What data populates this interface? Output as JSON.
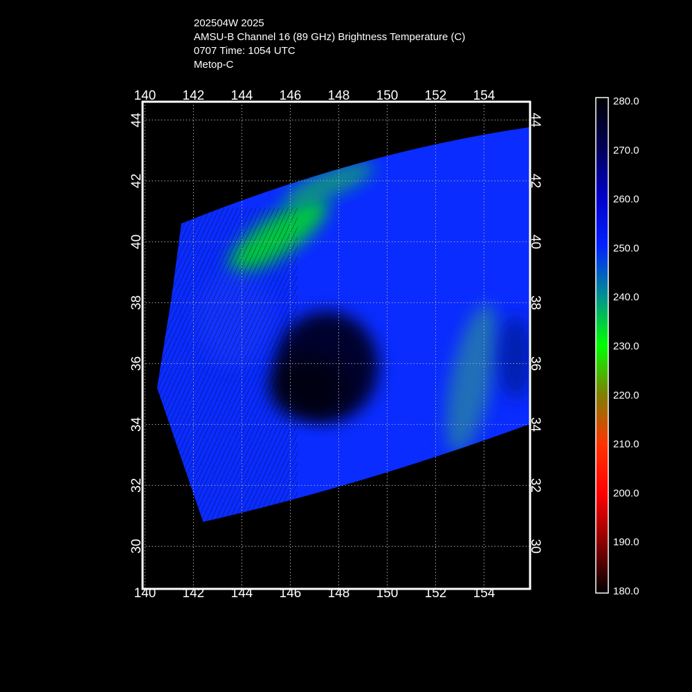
{
  "header": {
    "line1": "202504W 2025",
    "line2": "AMSU-B Channel 16 (89 GHz) Brightness Temperature (C)",
    "line3": "0707 Time: 1054 UTC",
    "line4": "Metop-C"
  },
  "chart_data": {
    "type": "heatmap",
    "title": "AMSU-B Channel 16 (89 GHz) Brightness Temperature (C)",
    "xlabel": "",
    "ylabel": "",
    "x_ticks": [
      "140",
      "142",
      "144",
      "146",
      "148",
      "150",
      "152",
      "154"
    ],
    "y_ticks": [
      "30",
      "32",
      "34",
      "36",
      "38",
      "40",
      "42",
      "44"
    ],
    "xlim": [
      139.9,
      155.9
    ],
    "ylim": [
      28.6,
      44.6
    ],
    "grid": true,
    "swath_corners_lonlat": [
      [
        141.5,
        40.6
      ],
      [
        156.2,
        43.8
      ],
      [
        156.2,
        34.1
      ],
      [
        142.4,
        30.8
      ],
      [
        140.5,
        35.2
      ],
      [
        141.1,
        38.2
      ]
    ],
    "features": [
      {
        "name": "eye_cold_core",
        "lon": 147.5,
        "lat": 35.9,
        "value_c": 270
      },
      {
        "name": "cold_rainband_north",
        "lon": 145.5,
        "lat": 40.2,
        "value_c": 232
      },
      {
        "name": "cold_rainband_ne",
        "lon": 147.6,
        "lat": 41.9,
        "value_c": 238
      },
      {
        "name": "cold_rainband_east",
        "lon": 153.5,
        "lat": 35.5,
        "value_c": 243
      }
    ],
    "colorbar": {
      "ticks": [
        "280.0",
        "270.0",
        "260.0",
        "250.0",
        "240.0",
        "230.0",
        "220.0",
        "210.0",
        "200.0",
        "190.0",
        "180.0"
      ],
      "range": [
        180,
        280
      ],
      "stops": [
        {
          "value": 280,
          "color": "#000000"
        },
        {
          "value": 270,
          "color": "#000055"
        },
        {
          "value": 260,
          "color": "#0000c8"
        },
        {
          "value": 250,
          "color": "#0022ff"
        },
        {
          "value": 240,
          "color": "#009090"
        },
        {
          "value": 230,
          "color": "#00ff00"
        },
        {
          "value": 220,
          "color": "#7f7f00"
        },
        {
          "value": 210,
          "color": "#ff3300"
        },
        {
          "value": 200,
          "color": "#ff0000"
        },
        {
          "value": 190,
          "color": "#880000"
        },
        {
          "value": 180,
          "color": "#000000"
        }
      ]
    }
  },
  "colors": {
    "background": "#000000",
    "frame": "#ffffff",
    "grid": "#aaaaaa",
    "swath_base": "#0a2cff"
  }
}
